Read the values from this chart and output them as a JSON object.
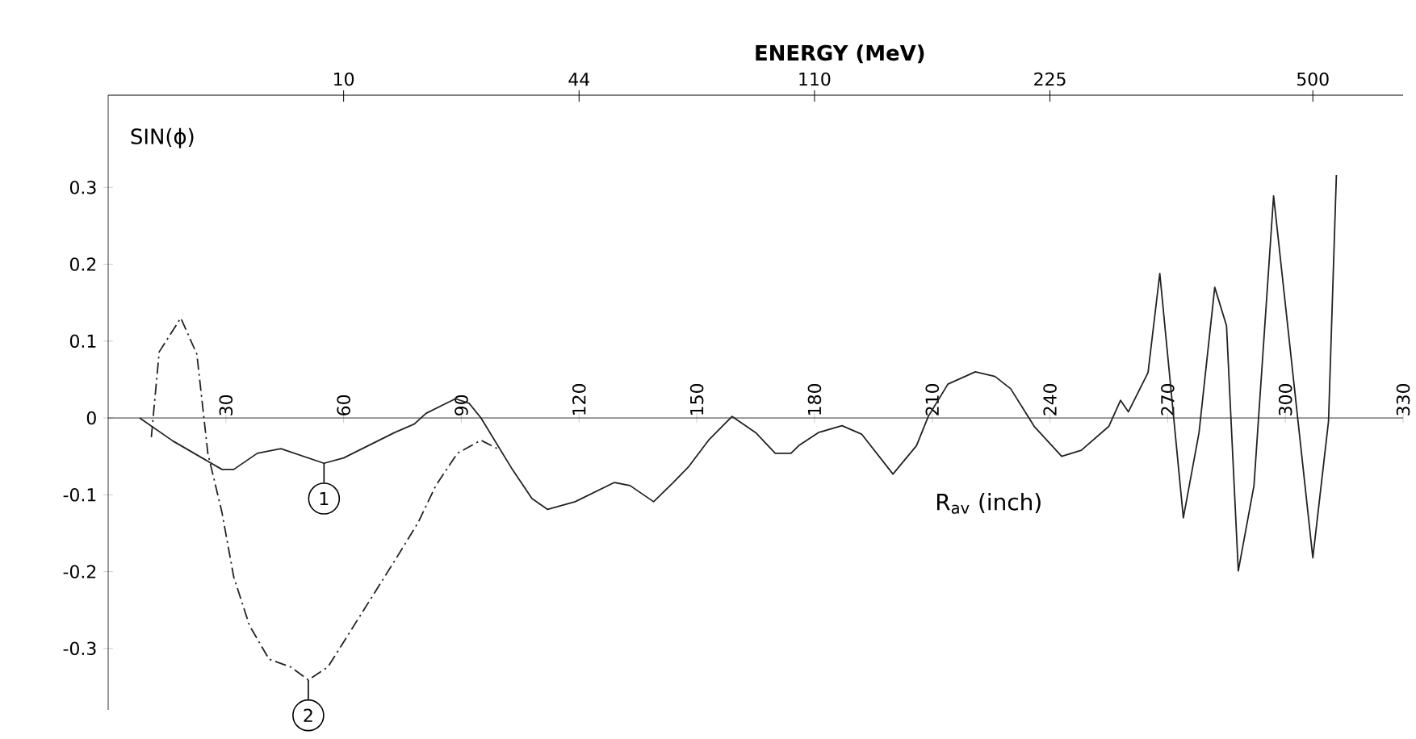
{
  "chart_data": {
    "type": "line",
    "ylabel": "SIN(ϕ)",
    "xlabel": "R$_{av}$ (inch)",
    "xlim": [
      0,
      330
    ],
    "xticks": [
      30,
      60,
      90,
      120,
      150,
      180,
      210,
      240,
      270,
      300,
      330
    ],
    "ylim": [
      -0.38,
      0.42
    ],
    "yticks": [
      -0.3,
      -0.2,
      -0.1,
      0,
      0.1,
      0.2,
      0.3
    ],
    "series": [
      {
        "color": "#222222",
        "line_style": "solid",
        "x": [
          8,
          16.5,
          29,
          32,
          38,
          44,
          55,
          60,
          73,
          78,
          81,
          88.5,
          92,
          95,
          103,
          108,
          112,
          119,
          129,
          133,
          139,
          144,
          148,
          153,
          159,
          165,
          170,
          174,
          176,
          181,
          187,
          192,
          200,
          206,
          209,
          214,
          221,
          226,
          230,
          236,
          243,
          248,
          255,
          258,
          260,
          265,
          268,
          274,
          278,
          282,
          285,
          288,
          292,
          297,
          307,
          311,
          313
        ],
        "values": [
          0,
          -0.03,
          -0.067,
          -0.067,
          -0.046,
          -0.04,
          -0.059,
          -0.052,
          -0.019,
          -0.008,
          0.006,
          0.025,
          0.019,
          0,
          -0.067,
          -0.105,
          -0.119,
          -0.109,
          -0.084,
          -0.088,
          -0.109,
          -0.084,
          -0.063,
          -0.029,
          0.002,
          -0.019,
          -0.046,
          -0.046,
          -0.036,
          -0.019,
          -0.01,
          -0.021,
          -0.073,
          -0.036,
          0.002,
          0.044,
          0.06,
          0.054,
          0.038,
          -0.011,
          -0.05,
          -0.042,
          -0.011,
          0.023,
          0.008,
          0.059,
          0.188,
          -0.13,
          -0.019,
          0.17,
          0.12,
          -0.199,
          -0.088,
          0.289,
          -0.182,
          -0.004,
          0.316
        ]
      },
      {
        "color": "#222222",
        "line_style": "dashed",
        "x": [
          11,
          13,
          18.5,
          22.6,
          25.4,
          29,
          32,
          36,
          41,
          46.5,
          51,
          56,
          64.5,
          73,
          79,
          83.5,
          89,
          95,
          100
        ],
        "values": [
          -0.025,
          0.086,
          0.13,
          0.083,
          -0.046,
          -0.123,
          -0.207,
          -0.27,
          -0.314,
          -0.324,
          -0.341,
          -0.324,
          -0.255,
          -0.186,
          -0.136,
          -0.088,
          -0.046,
          -0.029,
          -0.042
        ]
      }
    ],
    "annotations": [
      {
        "text": "1",
        "x": 55,
        "y": -0.059
      },
      {
        "text": "2",
        "x": 51,
        "y": -0.341
      },
      "ENERGY (MeV)",
      "10",
      "44",
      "110",
      "225",
      "500"
    ]
  }
}
